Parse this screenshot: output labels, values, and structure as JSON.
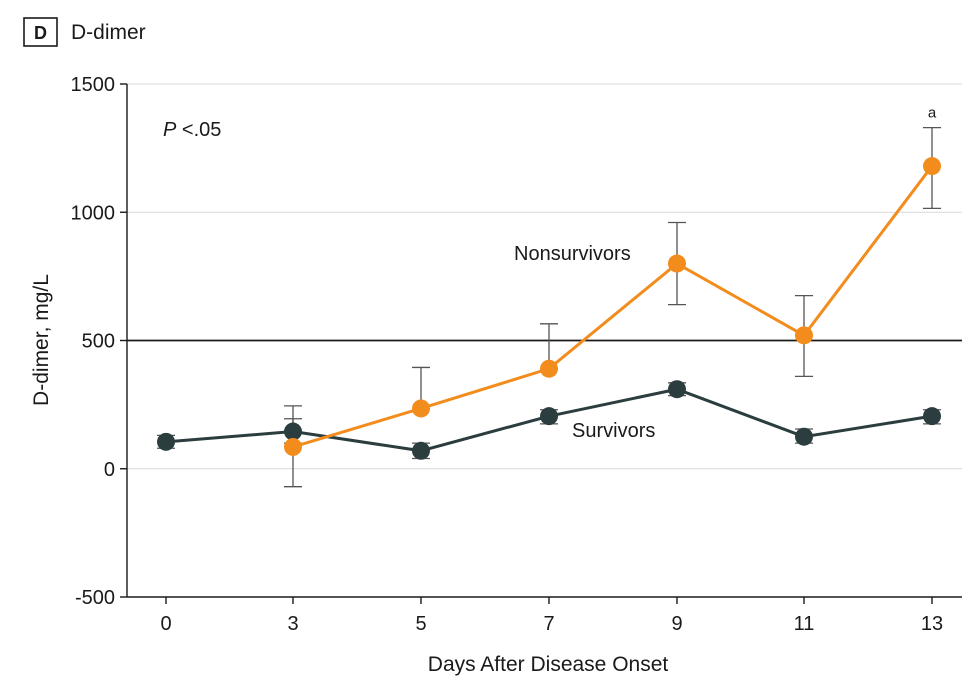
{
  "panel": {
    "badge": "D",
    "title": "D-dimer"
  },
  "annotation": {
    "p_italic": "P",
    "p_rest": " <.05"
  },
  "colors": {
    "survivors": "#2b3d3f",
    "nonsurvivors": "#f28c1c",
    "error_bars": "#555555",
    "reference_line": "#1a1a1a",
    "grid": "#d9d9d9"
  },
  "chart_data": {
    "type": "line",
    "title": "D-dimer",
    "xlabel": "Days After Disease Onset",
    "ylabel": "D-dimer, mg/L",
    "xticks": [
      0,
      3,
      5,
      7,
      9,
      11,
      13
    ],
    "yticks": [
      -500,
      0,
      500,
      1000,
      1500
    ],
    "ylim": [
      -500,
      1500
    ],
    "grid": "horizontal",
    "reference_line": 500,
    "significance_marker": {
      "x": 13,
      "label": "a"
    },
    "series": [
      {
        "name": "Survivors",
        "color": "#2b3d3f",
        "x": [
          0,
          3,
          5,
          7,
          9,
          11,
          13
        ],
        "values": [
          105,
          145,
          70,
          205,
          310,
          125,
          205
        ],
        "err_low": [
          80,
          100,
          40,
          175,
          285,
          100,
          175
        ],
        "err_high": [
          130,
          195,
          100,
          230,
          335,
          155,
          230
        ]
      },
      {
        "name": "Nonsurvivors",
        "color": "#f28c1c",
        "x": [
          3,
          5,
          7,
          9,
          11,
          13
        ],
        "values": [
          85,
          235,
          390,
          800,
          520,
          1180
        ],
        "err_low": [
          -70,
          null,
          null,
          640,
          360,
          1015
        ],
        "err_high": [
          245,
          395,
          565,
          960,
          675,
          1330
        ]
      }
    ]
  }
}
